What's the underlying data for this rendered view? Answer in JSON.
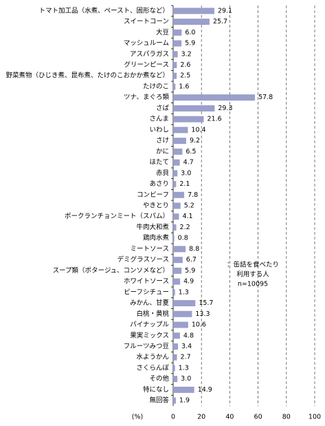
{
  "chart_data": {
    "type": "barh",
    "categories": [
      "トマト加工品（水煮、ペースト、固形など）",
      "スイートコーン",
      "大豆",
      "マッシュルーム",
      "アスパラガス",
      "グリーンピース",
      "野菜煮物（ひじき煮、昆布煮、たけのこおかか煮など）",
      "たけのこ",
      "ツナ、まぐろ類",
      "さば",
      "さんま",
      "いわし",
      "さけ",
      "かに",
      "ほたて",
      "赤貝",
      "あさり",
      "コンビーフ",
      "やきとり",
      "ポークランチョンミート（スパム）",
      "牛肉大和煮",
      "鶏肉水煮",
      "ミートソース",
      "デミグラスソース",
      "スープ類（ポタージュ、コンソメなど）",
      "ホワイトソース",
      "ビーフシチュー",
      "みかん、甘夏",
      "白桃・黄桃",
      "パイナップル",
      "果実ミックス",
      "フルーツみつ豆",
      "水ようかん",
      "さくらんぼ",
      "その他",
      "特になし",
      "無回答"
    ],
    "values": [
      29.1,
      25.7,
      6,
      5.9,
      3.2,
      2.6,
      2.5,
      1.6,
      57.8,
      29.3,
      21.6,
      10.4,
      9.2,
      6.5,
      4.7,
      3,
      2.1,
      7.8,
      5.2,
      4.1,
      2.2,
      0.8,
      8.8,
      6.7,
      5.9,
      4.9,
      1.3,
      15.7,
      13.3,
      10.6,
      4.8,
      3.4,
      2.7,
      1.3,
      3,
      14.9,
      1.9
    ],
    "value_labels": [
      "29.1",
      "25.7",
      "6.0",
      "5.9",
      "3.2",
      "2.6",
      "2.5",
      "1.6",
      "57.8",
      "29.3",
      "21.6",
      "10.4",
      "9.2",
      "6.5",
      "4.7",
      "3.0",
      "2.1",
      "7.8",
      "5.2",
      "4.1",
      "2.2",
      "0.8",
      "8.8",
      "6.7",
      "5.9",
      "4.9",
      "1.3",
      "15.7",
      "13.3",
      "10.6",
      "4.8",
      "3.4",
      "2.7",
      "1.3",
      "3.0",
      "14.9",
      "1.9"
    ],
    "color": "#9b9fcb",
    "xlim": [
      0,
      100
    ],
    "xticks": [
      0,
      20,
      40,
      60,
      80,
      100
    ],
    "grid": true,
    "xlabel": "(%)",
    "annotation": [
      "：缶詰を食べたり",
      "利用する人",
      "n=10095"
    ]
  }
}
